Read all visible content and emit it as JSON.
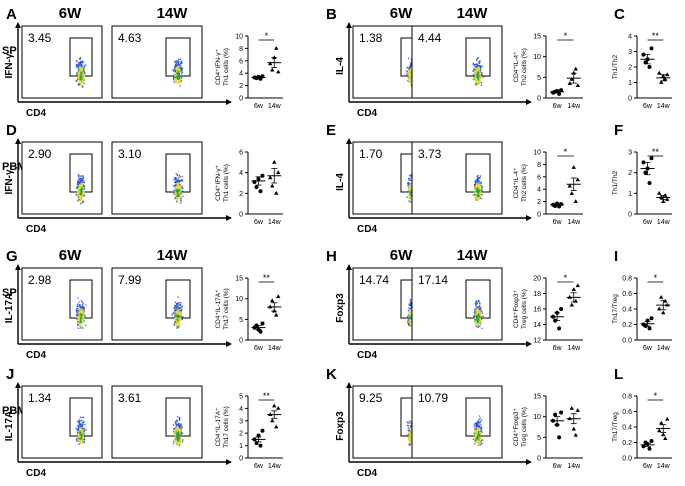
{
  "rows": [
    {
      "panels": [
        {
          "letter": "A",
          "tissue": "SP",
          "ylabel": "IFN-γ",
          "xlabel": "CD4",
          "h1": "6W",
          "h2": "14W",
          "p1": "3.45",
          "p2": "4.63",
          "chart": {
            "letter": "",
            "ylabel": [
              "CD4⁺IFN-γ⁺",
              "Th1 cells (%)"
            ],
            "ylim": [
              0,
              10
            ],
            "ticks": [
              "0",
              "2",
              "4",
              "6",
              "8",
              "10"
            ],
            "x": [
              "6w",
              "14w"
            ],
            "g1": [
              3.3,
              3.2,
              3.4,
              3.1,
              3.5
            ],
            "g2": [
              5.5,
              4.5,
              6.5,
              8,
              4.2
            ],
            "m1": 3.3,
            "e1": 0.1,
            "m2": 5.7,
            "e2": 0.8,
            "sig": "*"
          }
        },
        {
          "letter": "B",
          "tissue": "",
          "ylabel": "IL-4",
          "xlabel": "CD4",
          "h1": "6W",
          "h2": "14W",
          "p1": "1.38",
          "p2": "4.44",
          "chart": {
            "letter": "",
            "ylabel": [
              "CD4⁺IL-4⁺",
              "Th2 cells (%)"
            ],
            "ylim": [
              0,
              15
            ],
            "ticks": [
              "0",
              "5",
              "10",
              "15"
            ],
            "x": [
              "6w",
              "14w"
            ],
            "g1": [
              1.3,
              1.5,
              1.7,
              1.0,
              1.9
            ],
            "g2": [
              3.5,
              4.5,
              6,
              7,
              3
            ],
            "m1": 1.5,
            "e1": 0.2,
            "m2": 4.8,
            "e2": 1.2,
            "sig": "*"
          }
        },
        {
          "letter": "C",
          "tissue": "",
          "chart": {
            "letter": "C",
            "ylabel": [
              "Th1/Th2"
            ],
            "ylim": [
              0,
              4
            ],
            "ticks": [
              "0",
              "1",
              "2",
              "3",
              "4"
            ],
            "x": [
              "6w",
              "14w"
            ],
            "g1": [
              2.8,
              2.3,
              2.5,
              2.0,
              3.2
            ],
            "g2": [
              1.6,
              1.0,
              1.4,
              1.2,
              1.5
            ],
            "m1": 2.5,
            "e1": 0.3,
            "m2": 1.3,
            "e2": 0.2,
            "sig": "**"
          }
        }
      ]
    },
    {
      "panels": [
        {
          "letter": "D",
          "tissue": "PBMC",
          "ylabel": "IFN-γ",
          "xlabel": "CD4",
          "h1": "",
          "h2": "",
          "p1": "2.90",
          "p2": "3.10",
          "chart": {
            "letter": "",
            "ylabel": [
              "CD4⁺IFN-γ⁺",
              "Th1 cells (%)"
            ],
            "ylim": [
              0,
              6
            ],
            "ticks": [
              "0",
              "2",
              "4",
              "6"
            ],
            "x": [
              "6w",
              "14w"
            ],
            "g1": [
              3.1,
              2.6,
              3.4,
              2.2,
              3.7
            ],
            "g2": [
              3.5,
              2.7,
              5.0,
              2.0,
              4.0
            ],
            "m1": 3.2,
            "e1": 0.4,
            "m2": 3.7,
            "e2": 0.7,
            "sig": ""
          }
        },
        {
          "letter": "E",
          "tissue": "",
          "ylabel": "IL-4",
          "xlabel": "CD4",
          "h1": "",
          "h2": "",
          "p1": "1.70",
          "p2": "3.73",
          "chart": {
            "letter": "",
            "ylabel": [
              "CD4⁺IL-4⁺",
              "Th2 cells (%)"
            ],
            "ylim": [
              0,
              10
            ],
            "ticks": [
              "0",
              "2",
              "4",
              "6",
              "8",
              "10"
            ],
            "x": [
              "6w",
              "14w"
            ],
            "g1": [
              1.5,
              1.3,
              1.7,
              1.2,
              1.6
            ],
            "g2": [
              4.5,
              3.3,
              7.5,
              2.0,
              5.5
            ],
            "m1": 1.5,
            "e1": 0.1,
            "m2": 4.8,
            "e2": 1.0,
            "sig": "*"
          }
        },
        {
          "letter": "F",
          "tissue": "",
          "chart": {
            "letter": "F",
            "ylabel": [
              "Th1/Th2"
            ],
            "ylim": [
              0,
              3
            ],
            "ticks": [
              "0",
              "1",
              "2",
              "3"
            ],
            "x": [
              "6w",
              "14w"
            ],
            "g1": [
              2.5,
              2.0,
              2.2,
              1.5,
              2.7
            ],
            "g2": [
              1.0,
              0.8,
              0.6,
              0.9,
              0.7
            ],
            "m1": 2.2,
            "e1": 0.3,
            "m2": 0.8,
            "e2": 0.1,
            "sig": "**"
          }
        }
      ]
    },
    {
      "panels": [
        {
          "letter": "G",
          "tissue": "SP",
          "ylabel": "IL-17A",
          "xlabel": "CD4",
          "h1": "6W",
          "h2": "14W",
          "p1": "2.98",
          "p2": "7.99",
          "chart": {
            "letter": "",
            "ylabel": [
              "CD4⁺IL-17A⁺",
              "Th17 cells (%)"
            ],
            "ylim": [
              0,
              15
            ],
            "ticks": [
              "0",
              "5",
              "10",
              "15"
            ],
            "x": [
              "6w",
              "14w"
            ],
            "g1": [
              3,
              3.5,
              2.5,
              2,
              4
            ],
            "g2": [
              8,
              9.5,
              7,
              6,
              10.5
            ],
            "m1": 3,
            "e1": 0.5,
            "m2": 8,
            "e2": 1.0,
            "sig": "**"
          }
        },
        {
          "letter": "H",
          "tissue": "",
          "ylabel": "Foxp3",
          "xlabel": "CD4",
          "h1": "6W",
          "h2": "14W",
          "p1": "14.74",
          "p2": "17.14",
          "chart": {
            "letter": "",
            "ylabel": [
              "CD4⁺Foxp3⁺",
              "Treg cells (%)"
            ],
            "ylim": [
              12,
              20
            ],
            "ticks": [
              "12",
              "14",
              "16",
              "18",
              "20"
            ],
            "x": [
              "6w",
              "14w"
            ],
            "g1": [
              15,
              14.5,
              15.5,
              13.5,
              16
            ],
            "g2": [
              17.5,
              16.5,
              18.5,
              17,
              19
            ],
            "m1": 15,
            "e1": 0.5,
            "m2": 17.5,
            "e2": 0.6,
            "sig": "*"
          }
        },
        {
          "letter": "I",
          "tissue": "",
          "chart": {
            "letter": "I",
            "ylabel": [
              "Th17/Treg"
            ],
            "ylim": [
              0,
              0.8
            ],
            "ticks": [
              "0.0",
              "0.2",
              "0.4",
              "0.6",
              "0.8"
            ],
            "x": [
              "6w",
              "14w"
            ],
            "g1": [
              0.2,
              0.18,
              0.25,
              0.15,
              0.28
            ],
            "g2": [
              0.4,
              0.55,
              0.35,
              0.5,
              0.45
            ],
            "m1": 0.21,
            "e1": 0.03,
            "m2": 0.45,
            "e2": 0.06,
            "sig": "*"
          }
        }
      ]
    },
    {
      "panels": [
        {
          "letter": "J",
          "tissue": "PBMC",
          "ylabel": "IL-17A",
          "xlabel": "CD4",
          "h1": "",
          "h2": "",
          "p1": "1.34",
          "p2": "3.61",
          "chart": {
            "letter": "",
            "ylabel": [
              "CD4⁺IL-17A⁺",
              "Th17 cells (%)"
            ],
            "ylim": [
              0,
              5
            ],
            "ticks": [
              "0",
              "1",
              "2",
              "3",
              "4",
              "5"
            ],
            "x": [
              "6w",
              "14w"
            ],
            "g1": [
              1.5,
              1.2,
              1.8,
              1.0,
              2.2
            ],
            "g2": [
              3.5,
              3.0,
              4.2,
              2.5,
              4.0
            ],
            "m1": 1.5,
            "e1": 0.2,
            "m2": 3.5,
            "e2": 0.3,
            "sig": "**"
          }
        },
        {
          "letter": "K",
          "tissue": "",
          "ylabel": "Foxp3",
          "xlabel": "CD4",
          "h1": "",
          "h2": "",
          "p1": "9.25",
          "p2": "10.79",
          "chart": {
            "letter": "",
            "ylabel": [
              "CD4⁺Foxp3⁺",
              "Treg cells (%)"
            ],
            "ylim": [
              0,
              15
            ],
            "ticks": [
              "0",
              "5",
              "10",
              "15"
            ],
            "x": [
              "6w",
              "14w"
            ],
            "g1": [
              9,
              10.5,
              8,
              5,
              11
            ],
            "g2": [
              9.5,
              12,
              7,
              5.5,
              11.5
            ],
            "m1": 9,
            "e1": 1.0,
            "m2": 9.5,
            "e2": 1.2,
            "sig": ""
          }
        },
        {
          "letter": "L",
          "tissue": "",
          "chart": {
            "letter": "L",
            "ylabel": [
              "Th17/Treg"
            ],
            "ylim": [
              0,
              0.8
            ],
            "ticks": [
              "0.0",
              "0.2",
              "0.4",
              "0.6",
              "0.8"
            ],
            "x": [
              "6w",
              "14w"
            ],
            "g1": [
              0.15,
              0.2,
              0.18,
              0.12,
              0.22
            ],
            "g2": [
              0.35,
              0.45,
              0.3,
              0.25,
              0.5
            ],
            "m1": 0.17,
            "e1": 0.02,
            "m2": 0.38,
            "e2": 0.05,
            "sig": "*"
          }
        }
      ]
    }
  ],
  "colors": {
    "ink": "#000000",
    "dotCore": "#22a640",
    "dotMid": "#e2d83a",
    "dotEdge": "#2b54d4"
  }
}
